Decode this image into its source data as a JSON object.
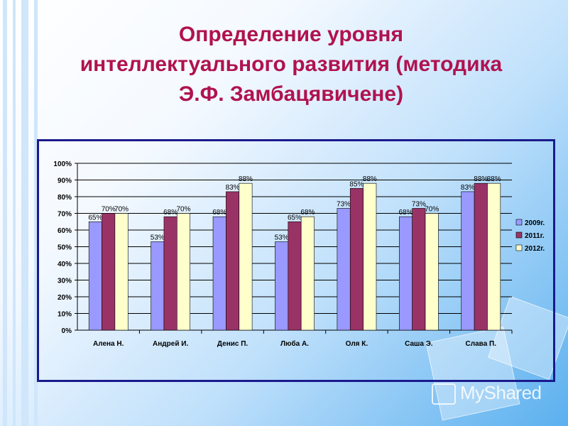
{
  "title": {
    "line1": "Определение уровня",
    "line2": "интеллектуального развития (методика",
    "line3": "Э.Ф. Замбацявичене)"
  },
  "watermark": "MyShared",
  "colors": {
    "title": "#b0124f",
    "frame": "#1a1a8c",
    "series": [
      "#9999ff",
      "#993366",
      "#ffffcc"
    ]
  },
  "chart_data": {
    "type": "bar",
    "categories": [
      "Алена Н.",
      "Андрей И.",
      "Денис П.",
      "Люба А.",
      "Оля К.",
      "Саша Э.",
      "Слава П."
    ],
    "series": [
      {
        "name": "2009г.",
        "values": [
          65,
          53,
          68,
          53,
          73,
          68,
          83
        ]
      },
      {
        "name": "2011г.",
        "values": [
          70,
          68,
          83,
          65,
          85,
          73,
          88
        ]
      },
      {
        "name": "2012г.",
        "values": [
          70,
          70,
          88,
          68,
          88,
          70,
          88
        ]
      }
    ],
    "ylim": [
      0,
      100
    ],
    "yticks": [
      "0%",
      "10%",
      "20%",
      "30%",
      "40%",
      "50%",
      "60%",
      "70%",
      "80%",
      "90%",
      "100%"
    ],
    "value_suffix": "%",
    "grid": true,
    "legend": "right"
  }
}
